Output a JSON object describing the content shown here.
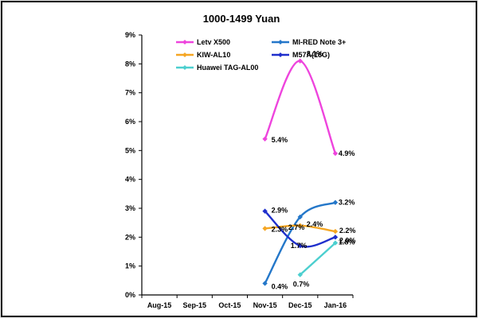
{
  "chart_data": {
    "type": "line",
    "title": "1000-1499 Yuan",
    "categories": [
      "Aug-15",
      "Sep-15",
      "Oct-15",
      "Nov-15",
      "Dec-15",
      "Jan-16"
    ],
    "y_tick_labels": [
      "0%",
      "1%",
      "2%",
      "3%",
      "4%",
      "5%",
      "6%",
      "7%",
      "8%",
      "9%"
    ],
    "ylim": [
      0,
      9
    ],
    "xlabel": "",
    "ylabel": "",
    "legend_position": "top-inside",
    "series": [
      {
        "name": "Letv X500",
        "color": "#ee44dd",
        "values": [
          null,
          null,
          null,
          5.4,
          8.1,
          4.9
        ],
        "labels": [
          null,
          null,
          null,
          "5.4%",
          "8.1%",
          "4.9%"
        ]
      },
      {
        "name": "MI-RED Note 3+",
        "color": "#2477c9",
        "values": [
          null,
          null,
          null,
          0.4,
          2.7,
          3.2
        ],
        "labels": [
          null,
          null,
          null,
          "0.4%",
          "2.7%",
          "3.2%"
        ]
      },
      {
        "name": "KIW-AL10",
        "color": "#f5a623",
        "values": [
          null,
          null,
          null,
          2.3,
          2.4,
          2.2
        ],
        "labels": [
          null,
          null,
          null,
          "2.3%",
          "2.4%",
          "2.2%"
        ]
      },
      {
        "name": "M57A(16G)",
        "color": "#1f2fcc",
        "values": [
          null,
          null,
          null,
          2.9,
          1.7,
          2.0
        ],
        "labels": [
          null,
          null,
          null,
          "2.9%",
          "1.7%",
          "2.0%"
        ]
      },
      {
        "name": "Huawei TAG-AL00",
        "color": "#4ccfcf",
        "values": [
          null,
          null,
          null,
          null,
          0.7,
          1.8
        ],
        "labels": [
          null,
          null,
          null,
          null,
          "0.7%",
          "1.8%"
        ]
      }
    ]
  }
}
